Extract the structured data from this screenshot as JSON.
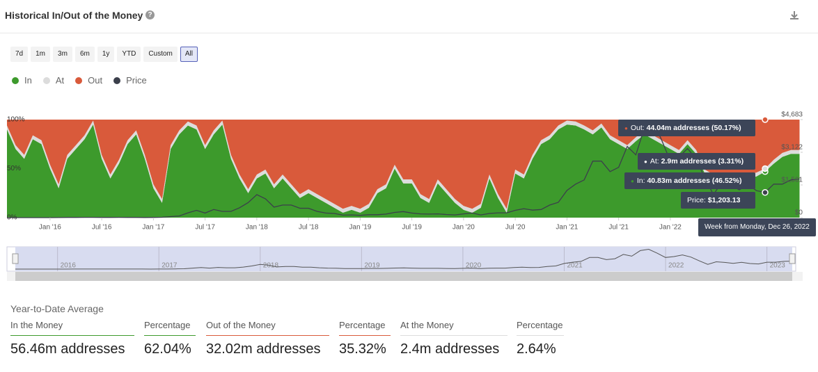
{
  "header": {
    "title": "Historical In/Out of the Money"
  },
  "ranges": {
    "buttons": [
      "7d",
      "1m",
      "3m",
      "6m",
      "1y",
      "YTD",
      "Custom",
      "All"
    ],
    "selected": "All"
  },
  "chart_data": {
    "type": "stacked-area",
    "categories": [
      "2015-08",
      "2015-09",
      "2015-10",
      "2015-11",
      "2015-12",
      "2016-01",
      "2016-02",
      "2016-03",
      "2016-04",
      "2016-05",
      "2016-06",
      "2016-07",
      "2016-08",
      "2016-09",
      "2016-10",
      "2016-11",
      "2016-12",
      "2017-01",
      "2017-02",
      "2017-03",
      "2017-04",
      "2017-05",
      "2017-06",
      "2017-07",
      "2017-08",
      "2017-09",
      "2017-10",
      "2017-11",
      "2017-12",
      "2018-01",
      "2018-02",
      "2018-03",
      "2018-04",
      "2018-05",
      "2018-06",
      "2018-07",
      "2018-08",
      "2018-09",
      "2018-10",
      "2018-11",
      "2018-12",
      "2019-01",
      "2019-02",
      "2019-03",
      "2019-04",
      "2019-05",
      "2019-06",
      "2019-07",
      "2019-08",
      "2019-09",
      "2019-10",
      "2019-11",
      "2019-12",
      "2020-01",
      "2020-02",
      "2020-03",
      "2020-04",
      "2020-05",
      "2020-06",
      "2020-07",
      "2020-08",
      "2020-09",
      "2020-10",
      "2020-11",
      "2020-12",
      "2021-01",
      "2021-02",
      "2021-03",
      "2021-04",
      "2021-05",
      "2021-06",
      "2021-07",
      "2021-08",
      "2021-09",
      "2021-10",
      "2021-11",
      "2021-12",
      "2022-01",
      "2022-02",
      "2022-03",
      "2022-04",
      "2022-05",
      "2022-06",
      "2022-07",
      "2022-08",
      "2022-09",
      "2022-10",
      "2022-11",
      "2022-12",
      "2023-01",
      "2023-02",
      "2023-03",
      "2023-04"
    ],
    "series": [
      {
        "name": "In",
        "color": "#3d9a2c",
        "values": [
          90,
          70,
          60,
          80,
          75,
          50,
          30,
          60,
          70,
          80,
          95,
          60,
          40,
          55,
          75,
          85,
          60,
          30,
          15,
          70,
          85,
          94,
          90,
          70,
          85,
          95,
          60,
          40,
          25,
          40,
          45,
          30,
          40,
          30,
          20,
          25,
          20,
          15,
          10,
          5,
          8,
          5,
          10,
          25,
          30,
          50,
          35,
          35,
          20,
          15,
          35,
          25,
          15,
          8,
          5,
          10,
          40,
          20,
          5,
          45,
          40,
          60,
          75,
          80,
          90,
          95,
          94,
          90,
          85,
          92,
          80,
          75,
          70,
          78,
          85,
          80,
          75,
          70,
          65,
          75,
          65,
          45,
          40,
          35,
          40,
          35,
          40,
          42,
          47,
          55,
          62,
          65,
          65
        ]
      },
      {
        "name": "At",
        "color": "#dcdcdc",
        "values": [
          4,
          4,
          4,
          4,
          4,
          4,
          4,
          4,
          4,
          4,
          4,
          4,
          4,
          4,
          4,
          4,
          4,
          4,
          4,
          4,
          4,
          4,
          4,
          4,
          4,
          4,
          4,
          4,
          4,
          4,
          4,
          4,
          4,
          4,
          4,
          4,
          4,
          4,
          4,
          4,
          4,
          4,
          4,
          4,
          4,
          4,
          4,
          4,
          4,
          4,
          4,
          4,
          4,
          4,
          4,
          4,
          4,
          4,
          4,
          4,
          4,
          4,
          4,
          4,
          4,
          4,
          4,
          4,
          4,
          4,
          4,
          4,
          4,
          4,
          4,
          4,
          4,
          4,
          4,
          4,
          4,
          4,
          4,
          4,
          4,
          4,
          4,
          4,
          3,
          4,
          4,
          4,
          4
        ]
      },
      {
        "name": "Out",
        "color": "#d95a3b",
        "values": [
          6,
          26,
          36,
          16,
          21,
          46,
          66,
          36,
          26,
          16,
          1,
          36,
          56,
          41,
          21,
          11,
          36,
          66,
          81,
          26,
          11,
          2,
          6,
          26,
          11,
          1,
          36,
          56,
          71,
          56,
          51,
          66,
          56,
          66,
          76,
          71,
          76,
          81,
          86,
          91,
          88,
          91,
          86,
          71,
          66,
          46,
          61,
          61,
          76,
          81,
          61,
          71,
          81,
          88,
          91,
          86,
          56,
          76,
          91,
          51,
          56,
          36,
          21,
          16,
          6,
          1,
          2,
          6,
          11,
          4,
          16,
          21,
          26,
          18,
          11,
          16,
          21,
          26,
          31,
          21,
          31,
          51,
          56,
          61,
          56,
          61,
          56,
          54,
          50,
          41,
          34,
          31,
          31
        ]
      },
      {
        "name": "Price",
        "color": "#3b3f4b",
        "axis": "y2",
        "values": [
          1,
          1,
          1,
          1,
          1,
          1,
          3,
          10,
          9,
          12,
          12,
          11,
          10,
          12,
          11,
          9,
          8,
          10,
          15,
          50,
          80,
          230,
          350,
          220,
          390,
          300,
          300,
          470,
          720,
          1100,
          900,
          500,
          600,
          600,
          450,
          450,
          300,
          220,
          200,
          120,
          130,
          110,
          140,
          140,
          170,
          250,
          290,
          220,
          180,
          170,
          180,
          150,
          130,
          180,
          220,
          130,
          200,
          230,
          230,
          350,
          430,
          360,
          390,
          600,
          730,
          1300,
          1600,
          1800,
          2700,
          2700,
          2200,
          2400,
          3400,
          3000,
          4300,
          4600,
          3700,
          2700,
          2900,
          3300,
          2800,
          1900,
          1100,
          1700,
          1550,
          1330,
          1570,
          1290,
          1203,
          1600,
          1600,
          1800,
          1850
        ]
      }
    ],
    "ylim": [
      0,
      100
    ],
    "yticks": [
      {
        "value": 0,
        "label": "0%"
      },
      {
        "value": 50,
        "label": "50%"
      },
      {
        "value": 100,
        "label": "100%"
      }
    ],
    "y2lim": [
      0,
      4683
    ],
    "y2ticks": [
      {
        "value": 0,
        "label": "$0"
      },
      {
        "value": 1561,
        "label": "$1,561"
      },
      {
        "value": 3122,
        "label": "$3,122"
      },
      {
        "value": 4683,
        "label": "$4,683"
      }
    ],
    "xticks": [
      {
        "value": "2016-01",
        "label": "Jan '16"
      },
      {
        "value": "2016-07",
        "label": "Jul '16"
      },
      {
        "value": "2017-01",
        "label": "Jan '17"
      },
      {
        "value": "2017-07",
        "label": "Jul '17"
      },
      {
        "value": "2018-01",
        "label": "Jan '18"
      },
      {
        "value": "2018-07",
        "label": "Jul '18"
      },
      {
        "value": "2019-01",
        "label": "Jan '19"
      },
      {
        "value": "2019-07",
        "label": "Jul '19"
      },
      {
        "value": "2020-01",
        "label": "Jan '20"
      },
      {
        "value": "2020-07",
        "label": "Jul '20"
      },
      {
        "value": "2021-01",
        "label": "Jan '21"
      },
      {
        "value": "2021-07",
        "label": "Jul '21"
      },
      {
        "value": "2022-01",
        "label": "Jan '22"
      }
    ],
    "navigator_ticks": [
      {
        "value": "2016-01",
        "label": "2016"
      },
      {
        "value": "2017-01",
        "label": "2017"
      },
      {
        "value": "2018-01",
        "label": "2018"
      },
      {
        "value": "2019-01",
        "label": "2019"
      },
      {
        "value": "2020-01",
        "label": "2020"
      },
      {
        "value": "2021-01",
        "label": "2021"
      },
      {
        "value": "2022-01",
        "label": "2022"
      },
      {
        "value": "2023-01",
        "label": "2023"
      }
    ],
    "tooltip": {
      "category": "2022-12",
      "header": "Week from Monday, Dec 26, 2022",
      "items": [
        {
          "label": "Out:",
          "value": "44.04m addresses (50.17%)"
        },
        {
          "label": "At:",
          "value": "2.9m addresses (3.31%)"
        },
        {
          "label": "In:",
          "value": "40.83m addresses (46.52%)"
        },
        {
          "label": "Price:",
          "value": "$1,203.13"
        }
      ]
    }
  },
  "stats": {
    "title": "Year-to-Date Average",
    "columns": [
      {
        "label": "In the Money",
        "value": "56.46m addresses"
      },
      {
        "label": "Percentage",
        "value": "62.04%"
      },
      {
        "label": "Out of the Money",
        "value": "32.02m addresses"
      },
      {
        "label": "Percentage",
        "value": "35.32%"
      },
      {
        "label": "At the Money",
        "value": "2.4m addresses"
      },
      {
        "label": "Percentage",
        "value": "2.64%"
      }
    ]
  }
}
